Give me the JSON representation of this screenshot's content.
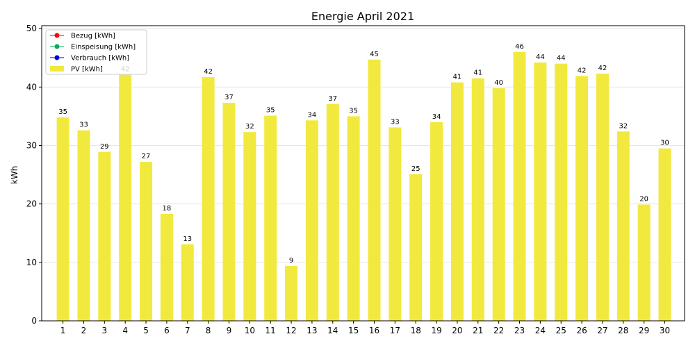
{
  "chart_data": {
    "type": "bar",
    "title": "Energie April 2021",
    "xlabel": "",
    "ylabel": "kWh",
    "categories": [
      "1",
      "2",
      "3",
      "4",
      "5",
      "6",
      "7",
      "8",
      "9",
      "10",
      "11",
      "12",
      "13",
      "14",
      "15",
      "16",
      "17",
      "18",
      "19",
      "20",
      "21",
      "22",
      "23",
      "24",
      "25",
      "26",
      "27",
      "28",
      "29",
      "30"
    ],
    "series": [
      {
        "name": "PV [kWh]",
        "color": "#f2e93f",
        "values": [
          34.8,
          32.6,
          28.9,
          42.1,
          27.2,
          18.3,
          13.1,
          41.7,
          37.3,
          32.3,
          35.1,
          9.4,
          34.3,
          37.1,
          35.0,
          44.7,
          33.1,
          25.1,
          34.0,
          40.8,
          41.5,
          39.8,
          46.0,
          44.2,
          44.0,
          41.9,
          42.3,
          32.4,
          19.9,
          29.5
        ]
      }
    ],
    "value_labels": [
      "35",
      "33",
      "29",
      "42",
      "27",
      "18",
      "13",
      "42",
      "37",
      "32",
      "35",
      "9",
      "34",
      "37",
      "35",
      "45",
      "33",
      "25",
      "34",
      "41",
      "41",
      "40",
      "46",
      "44",
      "44",
      "42",
      "42",
      "32",
      "20",
      "30"
    ],
    "ylim": [
      0,
      50.5
    ],
    "yticks": [
      "0",
      "10",
      "20",
      "30",
      "40",
      "50"
    ],
    "grid": "horizontal",
    "legend_position": "top-left",
    "legend": [
      {
        "label": "Bezug [kWh]",
        "color": "#ff0000",
        "marker": "line-dot"
      },
      {
        "label": "Einspeisung [kWh]",
        "color": "#00b050",
        "marker": "line-dot"
      },
      {
        "label": "Verbrauch [kWh]",
        "color": "#0000cc",
        "marker": "line-dot"
      },
      {
        "label": "PV [kWh]",
        "color": "#f2e93f",
        "marker": "patch"
      }
    ]
  }
}
